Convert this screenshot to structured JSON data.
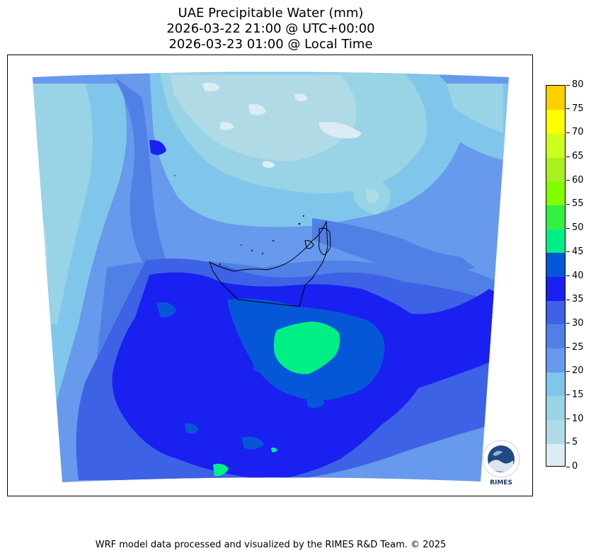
{
  "title": {
    "line1": "UAE Precipitable Water (mm)",
    "line2": "2026-03-22 21:00 @ UTC+00:00",
    "line3": "2026-03-23 01:00 @ Local Time"
  },
  "colorbar": {
    "ticks": [
      "0",
      "5",
      "10",
      "15",
      "20",
      "25",
      "30",
      "35",
      "40",
      "45",
      "50",
      "55",
      "60",
      "65",
      "70",
      "75",
      "80"
    ],
    "colors": [
      "#dcecf4",
      "#b0dae6",
      "#98d3e6",
      "#80c6ea",
      "#6799ec",
      "#5080e6",
      "#3d62e6",
      "#1a20f0",
      "#0557d8",
      "#00f085",
      "#33f040",
      "#80ff00",
      "#a8f020",
      "#ccff20",
      "#ffff00",
      "#ffcf00"
    ]
  },
  "footer": "WRF model data processed and visualized by the RIMES R&D Team. © 2025",
  "logo": {
    "text": "RIMES",
    "ring_text": "Regional Integrated Multi-Hazard Early Warning System"
  }
}
